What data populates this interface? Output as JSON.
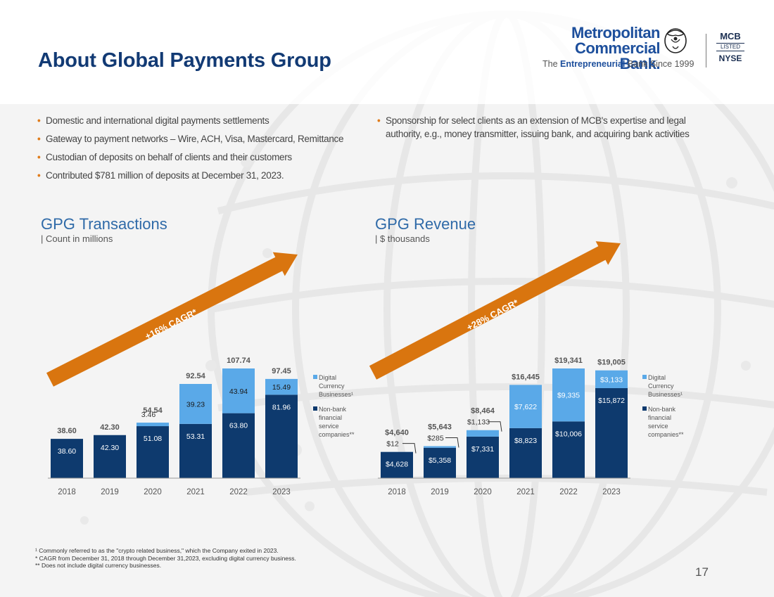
{
  "title": "About Global Payments Group",
  "logo": {
    "line1": "Metropolitan",
    "line2": "Commercial Bank.",
    "tagline_pre": "The ",
    "tagline_bold": "Entrepreneurial",
    "tagline_post": " Bank Since 1999",
    "ticker": "MCB",
    "listed": "LISTED",
    "exchange": "NYSE"
  },
  "bullets_left": [
    "Domestic and international digital payments settlements",
    "Gateway to payment networks – Wire, ACH, Visa, Mastercard, Remittance",
    "Custodian of deposits on behalf of clients and their customers",
    "Contributed $781 million of  deposits at December 31, 2023."
  ],
  "bullets_right": [
    "Sponsorship for select clients as an extension of MCB's expertise and legal authority, e.g., money transmitter, issuing bank, and acquiring bank activities"
  ],
  "colors": {
    "dark": "#0e3a6e",
    "light": "#5aa9e8",
    "arrow": "#d9750f",
    "title": "#123a74"
  },
  "chart_data": [
    {
      "type": "bar",
      "stacked": true,
      "title": "GPG Transactions",
      "subtitle": "| Count in millions",
      "categories": [
        "2018",
        "2019",
        "2020",
        "2021",
        "2022",
        "2023"
      ],
      "series": [
        {
          "name": "Non-bank financial service companies**",
          "values": [
            38.6,
            42.3,
            51.08,
            53.31,
            63.8,
            81.96
          ],
          "labels": [
            "38.60",
            "42.30",
            "51.08",
            "53.31",
            "63.80",
            "81.96"
          ]
        },
        {
          "name": "Digital Currency Businesses¹",
          "values": [
            0,
            0,
            3.46,
            39.23,
            43.94,
            15.49
          ],
          "labels": [
            "",
            "",
            "3.46",
            "39.23",
            "43.94",
            "15.49"
          ]
        }
      ],
      "totals": [
        "38.60",
        "42.30",
        "54.54",
        "92.54",
        "107.74",
        "97.45"
      ],
      "ylim": [
        0,
        107.74
      ],
      "annotation": "+16% CAGR*"
    },
    {
      "type": "bar",
      "stacked": true,
      "title": "GPG Revenue",
      "subtitle": "| $ thousands",
      "categories": [
        "2018",
        "2019",
        "2020",
        "2021",
        "2022",
        "2023"
      ],
      "series": [
        {
          "name": "Non-bank financial service companies**",
          "values": [
            4628,
            5358,
            7331,
            8823,
            10006,
            15872
          ],
          "labels": [
            "$4,628",
            "$5,358",
            "$7,331",
            "$8,823",
            "$10,006",
            "$15,872"
          ]
        },
        {
          "name": "Digital Currency Businesses¹",
          "values": [
            12,
            285,
            1133,
            7622,
            9335,
            3133
          ],
          "labels": [
            "$12",
            "$285",
            "$1,133",
            "$7,622",
            "$9,335",
            "$3,133"
          ]
        }
      ],
      "totals": [
        "$4,640",
        "$5,643",
        "$8,464",
        "$16,445",
        "$19,341",
        "$19,005"
      ],
      "ylim": [
        0,
        19341
      ],
      "annotation": "+28% CAGR*"
    }
  ],
  "legend": {
    "digital": [
      "Digital",
      "Currency",
      "Businesses¹"
    ],
    "nonbank": [
      "Non-bank",
      "financial",
      "service",
      "companies**"
    ]
  },
  "footnotes": [
    "¹    Commonly referred to as the \"crypto related business,\" which the Company exited in 2023.",
    "*    CAGR from December 31, 2018 through December 31,2023, excluding digital currency business.",
    "**  Does not include digital currency businesses."
  ],
  "page_number": "17"
}
